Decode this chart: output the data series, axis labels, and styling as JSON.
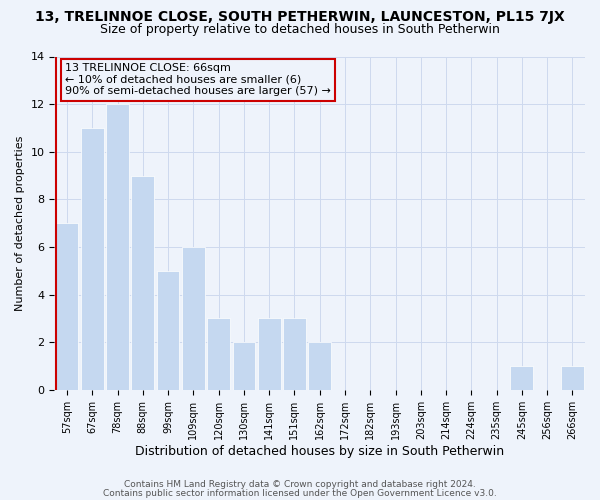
{
  "title": "13, TRELINNOE CLOSE, SOUTH PETHERWIN, LAUNCESTON, PL15 7JX",
  "subtitle": "Size of property relative to detached houses in South Petherwin",
  "xlabel": "Distribution of detached houses by size in South Petherwin",
  "ylabel": "Number of detached properties",
  "bar_labels": [
    "57sqm",
    "67sqm",
    "78sqm",
    "88sqm",
    "99sqm",
    "109sqm",
    "120sqm",
    "130sqm",
    "141sqm",
    "151sqm",
    "162sqm",
    "172sqm",
    "182sqm",
    "193sqm",
    "203sqm",
    "214sqm",
    "224sqm",
    "235sqm",
    "245sqm",
    "256sqm",
    "266sqm"
  ],
  "bar_heights": [
    7,
    11,
    12,
    9,
    5,
    6,
    3,
    2,
    3,
    3,
    2,
    0,
    0,
    0,
    0,
    0,
    0,
    0,
    1,
    0,
    1
  ],
  "bar_color": "#c5d8f0",
  "highlight_edge_color": "#cc0000",
  "annotation_box_text": "13 TRELINNOE CLOSE: 66sqm\n← 10% of detached houses are smaller (6)\n90% of semi-detached houses are larger (57) →",
  "ylim": [
    0,
    14
  ],
  "yticks": [
    0,
    2,
    4,
    6,
    8,
    10,
    12,
    14
  ],
  "footer_line1": "Contains HM Land Registry data © Crown copyright and database right 2024.",
  "footer_line2": "Contains public sector information licensed under the Open Government Licence v3.0.",
  "title_fontsize": 10,
  "subtitle_fontsize": 9,
  "xlabel_fontsize": 9,
  "ylabel_fontsize": 8,
  "annotation_fontsize": 8,
  "footer_fontsize": 6.5,
  "grid_color": "#cdd9ee",
  "background_color": "#eef3fb"
}
